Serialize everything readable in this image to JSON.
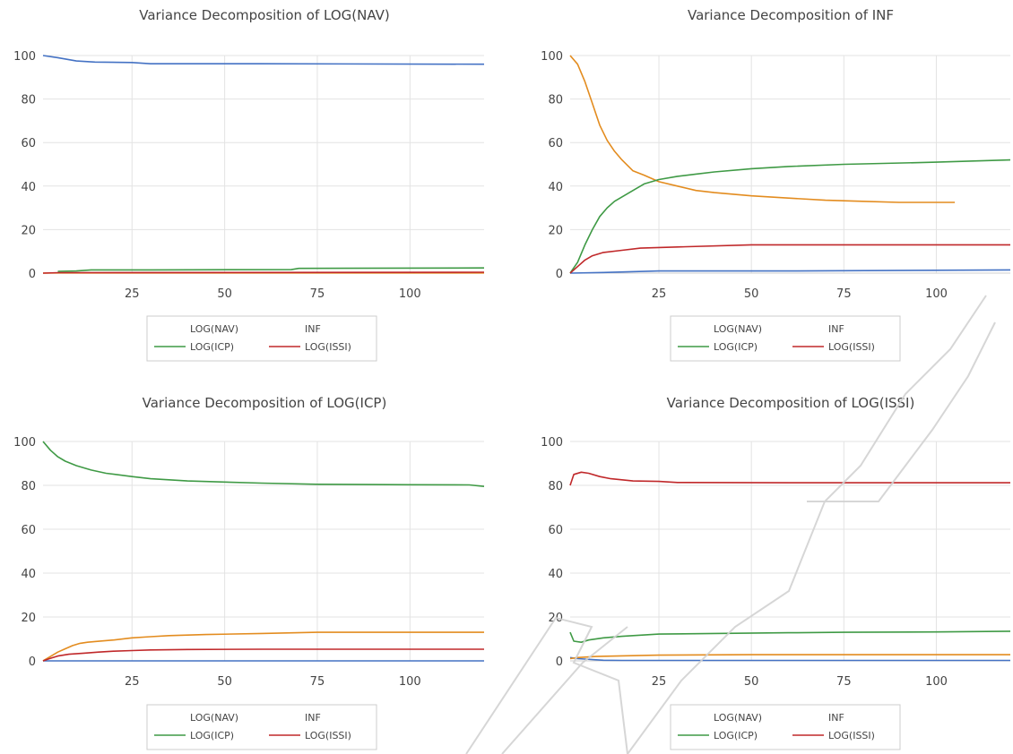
{
  "colors": {
    "nav": "#4472c4",
    "inf": "#e38c1f",
    "icp": "#3f9a45",
    "issi": "#c0282a",
    "grid": "#e3e3e3",
    "text": "#444444"
  },
  "chart_data": [
    {
      "type": "line",
      "title": "Variance Decomposition of LOG(NAV)",
      "xlabel": "",
      "ylabel": "",
      "xlim": [
        1,
        120
      ],
      "ylim": [
        0,
        100
      ],
      "xticks": [
        25,
        50,
        75,
        100
      ],
      "yticks": [
        0,
        20,
        40,
        60,
        80,
        100
      ],
      "grid": true,
      "legend": {
        "placement": "bottom",
        "items": [
          "LOG(NAV)",
          "INF",
          "LOG(ICP)",
          "LOG(ISSI)"
        ]
      },
      "series": [
        {
          "name": "LOG(NAV)",
          "color_key": "nav",
          "points": [
            [
              1,
              100
            ],
            [
              5,
              99
            ],
            [
              10,
              97.5
            ],
            [
              15,
              97
            ],
            [
              25,
              96.8
            ],
            [
              30,
              96.2
            ],
            [
              60,
              96.2
            ],
            [
              120,
              96
            ]
          ]
        },
        {
          "name": "INF",
          "color_key": "inf",
          "points": [
            [
              1,
              0
            ],
            [
              5,
              0.1
            ],
            [
              20,
              0.1
            ],
            [
              120,
              0.1
            ]
          ]
        },
        {
          "name": "LOG(ICP)",
          "color_key": "icp",
          "points": [
            [
              5,
              0.8
            ],
            [
              10,
              1
            ],
            [
              14,
              1.5
            ],
            [
              30,
              1.5
            ],
            [
              68,
              1.6
            ],
            [
              70,
              2.2
            ],
            [
              120,
              2.4
            ]
          ]
        },
        {
          "name": "LOG(ISSI)",
          "color_key": "issi",
          "points": [
            [
              1,
              0
            ],
            [
              5,
              0.2
            ],
            [
              120,
              0.4
            ]
          ]
        }
      ]
    },
    {
      "type": "line",
      "title": "Variance Decomposition of INF",
      "xlabel": "",
      "ylabel": "",
      "xlim": [
        1,
        120
      ],
      "ylim": [
        0,
        100
      ],
      "xticks": [
        25,
        50,
        75,
        100
      ],
      "yticks": [
        0,
        20,
        40,
        60,
        80,
        100
      ],
      "grid": true,
      "legend": {
        "placement": "bottom",
        "items": [
          "LOG(NAV)",
          "INF",
          "LOG(ICP)",
          "LOG(ISSI)"
        ]
      },
      "series": [
        {
          "name": "LOG(NAV)",
          "color_key": "nav",
          "points": [
            [
              1,
              0
            ],
            [
              10,
              0.3
            ],
            [
              25,
              1
            ],
            [
              60,
              1
            ],
            [
              120,
              1.5
            ]
          ]
        },
        {
          "name": "INF",
          "color_key": "inf",
          "points": [
            [
              1,
              100
            ],
            [
              3,
              96
            ],
            [
              5,
              88
            ],
            [
              7,
              78
            ],
            [
              9,
              68
            ],
            [
              11,
              61
            ],
            [
              13,
              56
            ],
            [
              15,
              52
            ],
            [
              18,
              47
            ],
            [
              21,
              45
            ],
            [
              25,
              42
            ],
            [
              30,
              40
            ],
            [
              35,
              38
            ],
            [
              40,
              37
            ],
            [
              50,
              35.5
            ],
            [
              60,
              34.5
            ],
            [
              70,
              33.5
            ],
            [
              80,
              33
            ],
            [
              90,
              32.5
            ],
            [
              105,
              32.5
            ]
          ]
        },
        {
          "name": "LOG(ICP)",
          "color_key": "icp",
          "points": [
            [
              1,
              0
            ],
            [
              3,
              5
            ],
            [
              5,
              13
            ],
            [
              7,
              20
            ],
            [
              9,
              26
            ],
            [
              11,
              30
            ],
            [
              13,
              33
            ],
            [
              15,
              35
            ],
            [
              18,
              38
            ],
            [
              21,
              41
            ],
            [
              25,
              43
            ],
            [
              30,
              44.5
            ],
            [
              35,
              45.5
            ],
            [
              40,
              46.5
            ],
            [
              50,
              48
            ],
            [
              60,
              49
            ],
            [
              75,
              50
            ],
            [
              100,
              51
            ],
            [
              120,
              52
            ]
          ]
        },
        {
          "name": "LOG(ISSI)",
          "color_key": "issi",
          "points": [
            [
              1,
              0
            ],
            [
              3,
              3
            ],
            [
              5,
              6
            ],
            [
              7,
              8
            ],
            [
              10,
              9.5
            ],
            [
              15,
              10.5
            ],
            [
              20,
              11.5
            ],
            [
              30,
              12
            ],
            [
              50,
              13
            ],
            [
              75,
              13
            ],
            [
              120,
              13
            ]
          ]
        }
      ]
    },
    {
      "type": "line",
      "title": "Variance Decomposition of LOG(ICP)",
      "xlabel": "",
      "ylabel": "",
      "xlim": [
        1,
        120
      ],
      "ylim": [
        0,
        100
      ],
      "xticks": [
        25,
        50,
        75,
        100
      ],
      "yticks": [
        0,
        20,
        40,
        60,
        80,
        100
      ],
      "grid": true,
      "legend": {
        "placement": "bottom",
        "items": [
          "LOG(NAV)",
          "INF",
          "LOG(ICP)",
          "LOG(ISSI)"
        ]
      },
      "series": [
        {
          "name": "LOG(NAV)",
          "color_key": "nav",
          "points": [
            [
              1,
              0
            ],
            [
              120,
              0
            ]
          ]
        },
        {
          "name": "INF",
          "color_key": "inf",
          "points": [
            [
              1,
              0
            ],
            [
              3,
              2
            ],
            [
              5,
              4
            ],
            [
              7,
              5.5
            ],
            [
              9,
              7
            ],
            [
              11,
              8
            ],
            [
              13,
              8.5
            ],
            [
              15,
              8.8
            ],
            [
              20,
              9.5
            ],
            [
              25,
              10.5
            ],
            [
              30,
              11
            ],
            [
              35,
              11.5
            ],
            [
              45,
              12
            ],
            [
              60,
              12.5
            ],
            [
              75,
              13
            ],
            [
              120,
              13
            ]
          ]
        },
        {
          "name": "LOG(ICP)",
          "color_key": "icp",
          "points": [
            [
              1,
              100
            ],
            [
              3,
              96
            ],
            [
              5,
              93
            ],
            [
              7,
              91
            ],
            [
              10,
              89
            ],
            [
              14,
              87
            ],
            [
              18,
              85.5
            ],
            [
              25,
              84
            ],
            [
              30,
              83
            ],
            [
              40,
              82
            ],
            [
              50,
              81.5
            ],
            [
              60,
              81
            ],
            [
              75,
              80.5
            ],
            [
              100,
              80.3
            ],
            [
              116,
              80.2
            ],
            [
              120,
              79.5
            ]
          ]
        },
        {
          "name": "LOG(ISSI)",
          "color_key": "issi",
          "points": [
            [
              1,
              0
            ],
            [
              3,
              1.2
            ],
            [
              5,
              2.2
            ],
            [
              8,
              3
            ],
            [
              12,
              3.5
            ],
            [
              16,
              4
            ],
            [
              20,
              4.4
            ],
            [
              25,
              4.7
            ],
            [
              30,
              5
            ],
            [
              40,
              5.2
            ],
            [
              60,
              5.3
            ],
            [
              120,
              5.3
            ]
          ]
        }
      ]
    },
    {
      "type": "line",
      "title": "Variance Decomposition of LOG(ISSI)",
      "xlabel": "",
      "ylabel": "",
      "xlim": [
        1,
        120
      ],
      "ylim": [
        0,
        100
      ],
      "xticks": [
        25,
        50,
        75,
        100
      ],
      "yticks": [
        0,
        20,
        40,
        60,
        80,
        100
      ],
      "grid": true,
      "legend": {
        "placement": "bottom",
        "items": [
          "LOG(NAV)",
          "INF",
          "LOG(ICP)",
          "LOG(ISSI)"
        ]
      },
      "series": [
        {
          "name": "LOG(NAV)",
          "color_key": "nav",
          "points": [
            [
              1,
              1.5
            ],
            [
              3,
              1
            ],
            [
              5,
              0.8
            ],
            [
              8,
              0.5
            ],
            [
              10,
              0.3
            ],
            [
              15,
              0.2
            ],
            [
              120,
              0.2
            ]
          ]
        },
        {
          "name": "INF",
          "color_key": "inf",
          "points": [
            [
              1,
              1
            ],
            [
              3,
              1.5
            ],
            [
              8,
              2
            ],
            [
              15,
              2.3
            ],
            [
              25,
              2.6
            ],
            [
              50,
              2.8
            ],
            [
              120,
              2.8
            ]
          ]
        },
        {
          "name": "LOG(ICP)",
          "color_key": "icp",
          "points": [
            [
              1,
              13
            ],
            [
              2,
              9
            ],
            [
              4,
              8.5
            ],
            [
              6,
              9.5
            ],
            [
              10,
              10.5
            ],
            [
              15,
              11.2
            ],
            [
              20,
              11.7
            ],
            [
              25,
              12.2
            ],
            [
              40,
              12.5
            ],
            [
              60,
              12.8
            ],
            [
              75,
              13
            ],
            [
              100,
              13.2
            ],
            [
              120,
              13.5
            ]
          ]
        },
        {
          "name": "LOG(ISSI)",
          "color_key": "issi",
          "points": [
            [
              1,
              80
            ],
            [
              2,
              85
            ],
            [
              4,
              86
            ],
            [
              6,
              85.5
            ],
            [
              9,
              84
            ],
            [
              12,
              83
            ],
            [
              18,
              82
            ],
            [
              25,
              81.8
            ],
            [
              30,
              81.3
            ],
            [
              60,
              81.2
            ],
            [
              120,
              81.2
            ]
          ]
        }
      ]
    }
  ]
}
